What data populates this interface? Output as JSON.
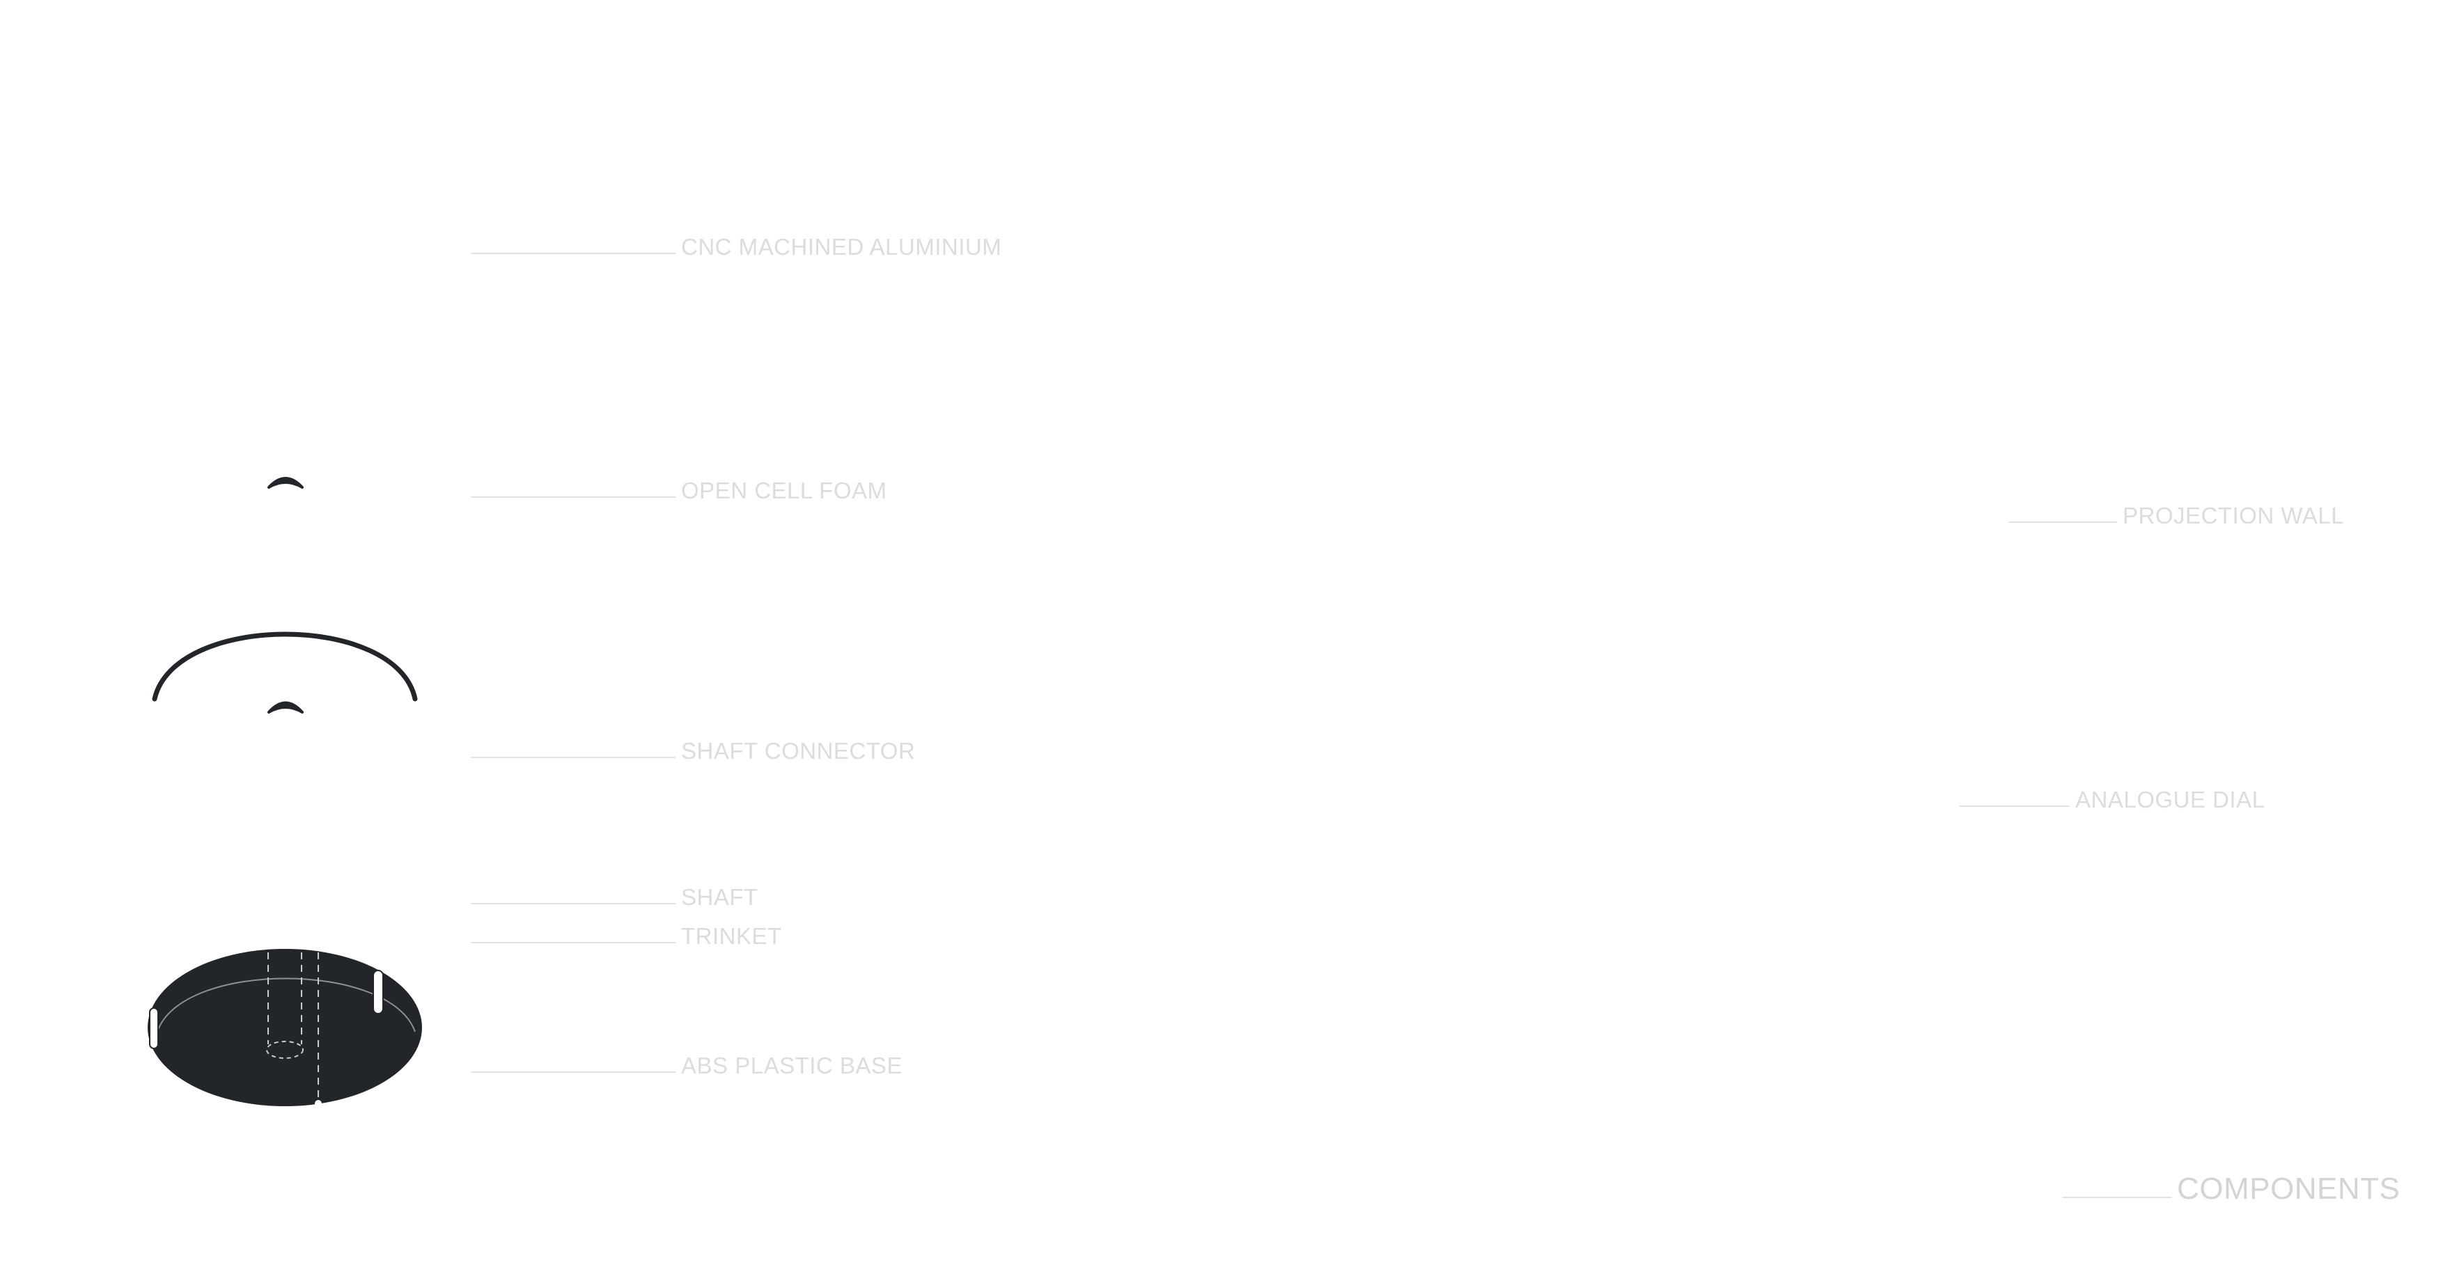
{
  "labels": {
    "cnc_machined_aluminium": "CNC MACHINED ALUMINIUM",
    "open_cell_foam": "OPEN CELL FOAM",
    "shaft_connector": "SHAFT CONNECTOR",
    "shaft": "SHAFT",
    "trinket": "TRINKET",
    "abs_plastic_base": "ABS PLASTIC BASE",
    "projection_wall": "PROJECTION WALL",
    "analogue_dial": "ANALOGUE DIAL",
    "components": "COMPONENTS"
  },
  "colors": {
    "part_fill": "#22262b",
    "label_text": "#dcdcdc",
    "leader_line": "#e2e2e2",
    "background": "#ffffff"
  }
}
